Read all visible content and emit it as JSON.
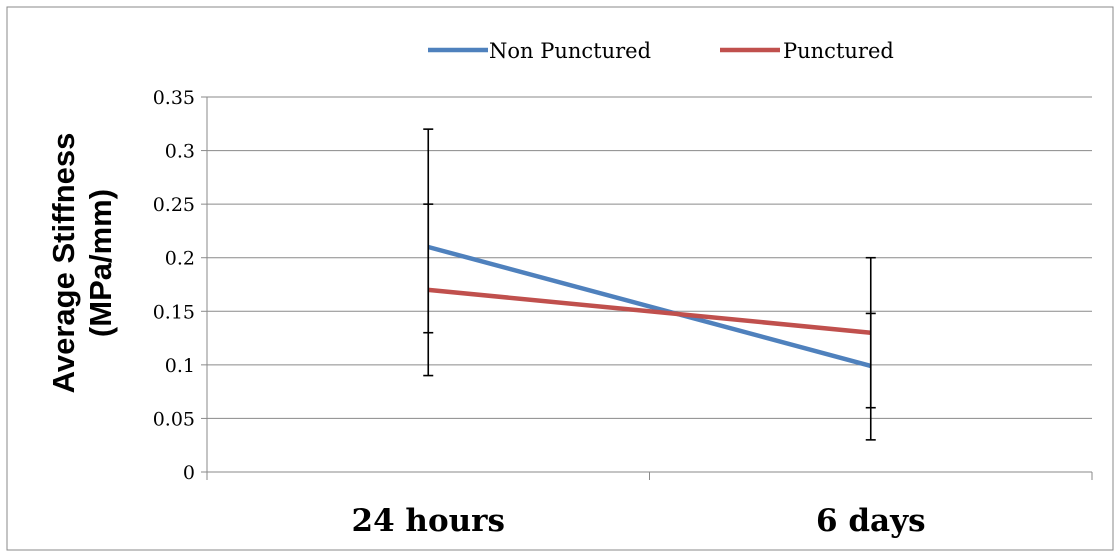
{
  "chart_data": {
    "type": "line",
    "categories": [
      "24 hours",
      "6 days"
    ],
    "ylabel_line1": "Average Stiffness",
    "ylabel_line2": "(MPa/mm)",
    "ylim": [
      0,
      0.35
    ],
    "yticks": [
      0,
      0.05,
      0.1,
      0.15,
      0.2,
      0.25,
      0.3,
      0.35
    ],
    "ytick_labels": [
      "0",
      "0.05",
      "0.1",
      "0.15",
      "0.2",
      "0.25",
      "0.3",
      "0.35"
    ],
    "grid": true,
    "legend_position": "top-center",
    "series": [
      {
        "name": "Non Punctured",
        "color": "#4F81BD",
        "values": [
          0.21,
          0.099
        ],
        "error_low": [
          0.13,
          0.03
        ],
        "error_high": [
          0.32,
          0.148
        ]
      },
      {
        "name": "Punctured",
        "color": "#C0504D",
        "values": [
          0.17,
          0.13
        ],
        "error_low": [
          0.09,
          0.06
        ],
        "error_high": [
          0.25,
          0.2
        ]
      }
    ]
  }
}
